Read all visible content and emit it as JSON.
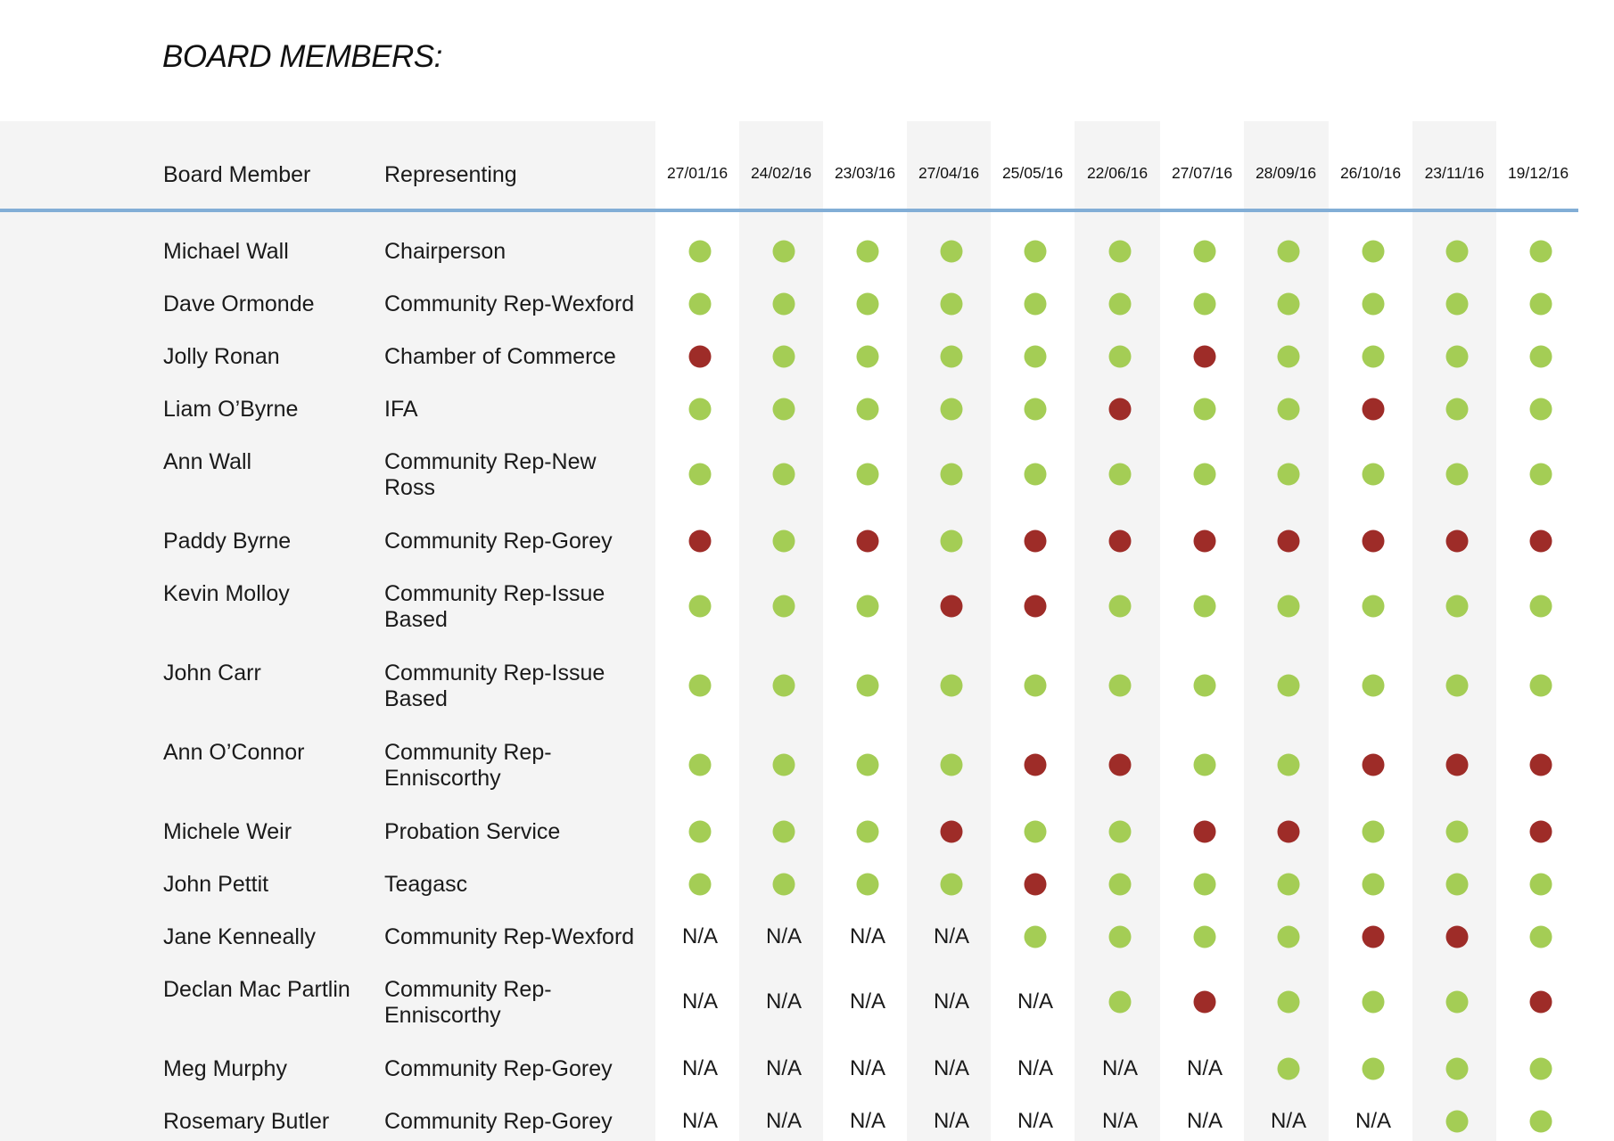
{
  "heading": "BOARD MEMBERS:",
  "columns": {
    "member": "Board Member",
    "representing": "Representing",
    "dates": [
      "27/01/16",
      "24/02/16",
      "23/03/16",
      "27/04/16",
      "25/05/16",
      "22/06/16",
      "27/07/16",
      "28/09/16",
      "26/10/16",
      "23/11/16",
      "19/12/16"
    ]
  },
  "legend": {
    "attended_color": "#a4cd55",
    "absent_color": "#9e2c28",
    "na_label": "N/A"
  },
  "members": [
    {
      "name": "Michael Wall",
      "representing": "Chairperson",
      "attendance": [
        "Y",
        "Y",
        "Y",
        "Y",
        "Y",
        "Y",
        "Y",
        "Y",
        "Y",
        "Y",
        "Y"
      ]
    },
    {
      "name": "Dave Ormonde",
      "representing": "Community Rep-Wexford",
      "attendance": [
        "Y",
        "Y",
        "Y",
        "Y",
        "Y",
        "Y",
        "Y",
        "Y",
        "Y",
        "Y",
        "Y"
      ]
    },
    {
      "name": "Jolly Ronan",
      "representing": "Chamber of Commerce",
      "attendance": [
        "N",
        "Y",
        "Y",
        "Y",
        "Y",
        "Y",
        "N",
        "Y",
        "Y",
        "Y",
        "Y"
      ]
    },
    {
      "name": "Liam O’Byrne",
      "representing": "IFA",
      "attendance": [
        "Y",
        "Y",
        "Y",
        "Y",
        "Y",
        "N",
        "Y",
        "Y",
        "N",
        "Y",
        "Y"
      ]
    },
    {
      "name": "Ann Wall",
      "representing": "Community Rep-New Ross",
      "attendance": [
        "Y",
        "Y",
        "Y",
        "Y",
        "Y",
        "Y",
        "Y",
        "Y",
        "Y",
        "Y",
        "Y"
      ]
    },
    {
      "name": "Paddy Byrne",
      "representing": "Community Rep-Gorey",
      "attendance": [
        "N",
        "Y",
        "N",
        "Y",
        "N",
        "N",
        "N",
        "N",
        "N",
        "N",
        "N"
      ]
    },
    {
      "name": "Kevin Molloy",
      "representing": "Community Rep-Issue Based",
      "attendance": [
        "Y",
        "Y",
        "Y",
        "N",
        "N",
        "Y",
        "Y",
        "Y",
        "Y",
        "Y",
        "Y"
      ]
    },
    {
      "name": "John Carr",
      "representing": "Community Rep-Issue Based",
      "attendance": [
        "Y",
        "Y",
        "Y",
        "Y",
        "Y",
        "Y",
        "Y",
        "Y",
        "Y",
        "Y",
        "Y"
      ]
    },
    {
      "name": "Ann O’Connor",
      "representing": "Community Rep-Enniscorthy",
      "attendance": [
        "Y",
        "Y",
        "Y",
        "Y",
        "N",
        "N",
        "Y",
        "Y",
        "N",
        "N",
        "N"
      ]
    },
    {
      "name": "Michele Weir",
      "representing": "Probation Service",
      "attendance": [
        "Y",
        "Y",
        "Y",
        "N",
        "Y",
        "Y",
        "N",
        "N",
        "Y",
        "Y",
        "N"
      ]
    },
    {
      "name": "John Pettit",
      "representing": "Teagasc",
      "attendance": [
        "Y",
        "Y",
        "Y",
        "Y",
        "N",
        "Y",
        "Y",
        "Y",
        "Y",
        "Y",
        "Y"
      ]
    },
    {
      "name": "Jane Kenneally",
      "representing": "Community Rep-Wexford",
      "attendance": [
        "N/A",
        "N/A",
        "N/A",
        "N/A",
        "Y",
        "Y",
        "Y",
        "Y",
        "N",
        "N",
        "Y"
      ]
    },
    {
      "name": "Declan Mac Partlin",
      "representing": "Community Rep-Enniscorthy",
      "attendance": [
        "N/A",
        "N/A",
        "N/A",
        "N/A",
        "N/A",
        "Y",
        "N",
        "Y",
        "Y",
        "Y",
        "N"
      ]
    },
    {
      "name": "Meg Murphy",
      "representing": "Community Rep-Gorey",
      "attendance": [
        "N/A",
        "N/A",
        "N/A",
        "N/A",
        "N/A",
        "N/A",
        "N/A",
        "Y",
        "Y",
        "Y",
        "Y"
      ]
    },
    {
      "name": "Rosemary Butler",
      "representing": "Community Rep-Gorey",
      "attendance": [
        "N/A",
        "N/A",
        "N/A",
        "N/A",
        "N/A",
        "N/A",
        "N/A",
        "N/A",
        "N/A",
        "Y",
        "Y"
      ]
    }
  ]
}
